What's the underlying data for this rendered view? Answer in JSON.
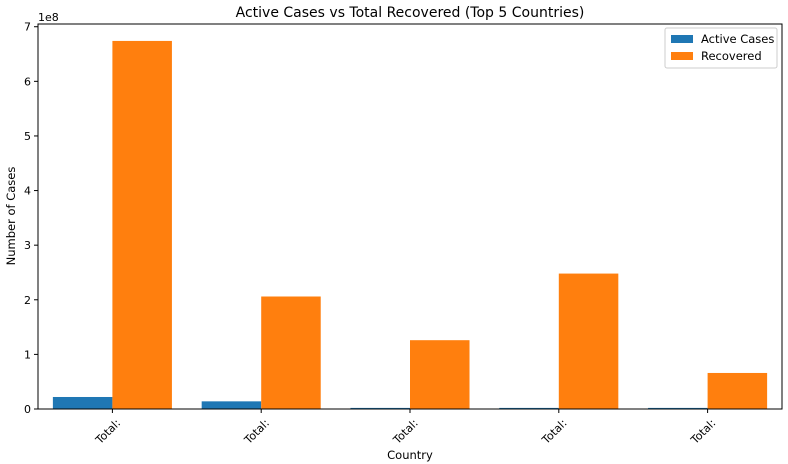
{
  "chart_data": {
    "type": "bar",
    "title": "Active Cases vs Total Recovered (Top 5 Countries)",
    "xlabel": "Country",
    "ylabel": "Number of Cases",
    "y_offset_label": "1e8",
    "y_scale": 100000000,
    "ylim": [
      0,
      7.05
    ],
    "yticks": [
      0,
      1,
      2,
      3,
      4,
      5,
      6,
      7
    ],
    "categories": [
      "Total:",
      "Total:",
      "Total:",
      "Total:",
      "Total:"
    ],
    "series": [
      {
        "name": "Active Cases",
        "color": "#1f77b4",
        "values": [
          0.22,
          0.14,
          0.02,
          0.02,
          0.02
        ]
      },
      {
        "name": "Recovered",
        "color": "#ff7f0e",
        "values": [
          6.74,
          2.06,
          1.26,
          2.48,
          0.66
        ]
      }
    ],
    "legend_position": "top-right",
    "grid": false
  }
}
